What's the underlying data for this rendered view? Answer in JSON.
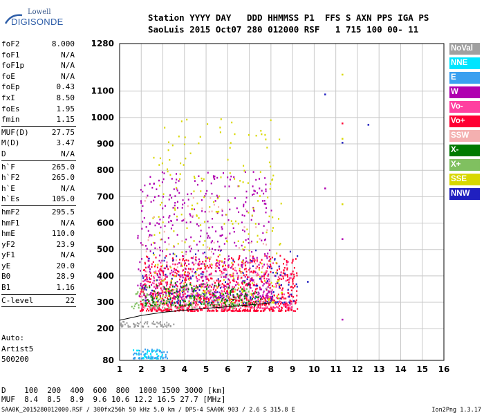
{
  "logo": {
    "line1": "Lowell",
    "line2": "DIGISONDE"
  },
  "header": {
    "line1": "Station YYYY DAY   DDD HHMMSS P1  FFS S AXN PPS IGA PS",
    "line2": "SaoLuis 2015 Oct07 280 012000 RSF   1 715 100 00- 11"
  },
  "params": {
    "group1": [
      {
        "key": "foF2",
        "value": "8.000"
      },
      {
        "key": "foF1",
        "value": "N/A"
      },
      {
        "key": "foF1p",
        "value": "N/A"
      },
      {
        "key": "foE",
        "value": "N/A"
      },
      {
        "key": "foEp",
        "value": "0.43"
      },
      {
        "key": "fxI",
        "value": "8.50"
      },
      {
        "key": "foEs",
        "value": "1.95"
      },
      {
        "key": "fmin",
        "value": "1.15"
      }
    ],
    "group2": [
      {
        "key": "MUF(D)",
        "value": "27.75"
      },
      {
        "key": "M(D)",
        "value": "3.47"
      },
      {
        "key": "D",
        "value": "N/A"
      }
    ],
    "group3": [
      {
        "key": "h`F",
        "value": "265.0"
      },
      {
        "key": "h`F2",
        "value": "265.0"
      },
      {
        "key": "h`E",
        "value": "N/A"
      },
      {
        "key": "h`Es",
        "value": "105.0"
      }
    ],
    "group4": [
      {
        "key": "hmF2",
        "value": "295.5"
      },
      {
        "key": "hmF1",
        "value": "N/A"
      },
      {
        "key": "hmE",
        "value": "110.0"
      },
      {
        "key": "yF2",
        "value": "23.9"
      },
      {
        "key": "yF1",
        "value": "N/A"
      },
      {
        "key": "yE",
        "value": "20.0"
      },
      {
        "key": "B0",
        "value": "28.9"
      },
      {
        "key": "B1",
        "value": "1.16"
      }
    ],
    "group5": [
      {
        "key": "C-level",
        "value": "22"
      }
    ]
  },
  "auto": {
    "line1": "Auto:",
    "line2": "Artist5",
    "line3": "500200"
  },
  "footer": {
    "d_row": "D    100  200  400  600  800  1000 1500 3000 [km]",
    "muf_row": "MUF  8.4  8.5  8.9  9.6 10.6 12.2 16.5 27.7 [MHz]",
    "file": "SAA0K_2015280012000.RSF / 300fx256h 50 kHz 5.0 km / DPS-4 SAA0K 903 / 2.6 S 315.8 E",
    "version": "Ion2Png 1.3.17"
  },
  "legend": [
    {
      "label": "NoVal",
      "color": "#a0a0a0"
    },
    {
      "label": "NNE",
      "color": "#00e5ff"
    },
    {
      "label": "E",
      "color": "#3aa0f0"
    },
    {
      "label": "W",
      "color": "#b000b0"
    },
    {
      "label": "Vo-",
      "color": "#ff40a0"
    },
    {
      "label": "Vo+",
      "color": "#ff0033"
    },
    {
      "label": "SSW",
      "color": "#f4b0b0"
    },
    {
      "label": "X-",
      "color": "#007a00"
    },
    {
      "label": "X+",
      "color": "#80c060"
    },
    {
      "label": "SSE",
      "color": "#d8d800"
    },
    {
      "label": "NNW",
      "color": "#2020c0"
    }
  ],
  "chart_data": {
    "type": "scatter",
    "xlabel": "",
    "ylabel": "",
    "x_ticks": [
      1,
      2,
      3,
      4,
      5,
      6,
      7,
      8,
      9,
      10,
      11,
      12,
      13,
      14,
      15,
      16
    ],
    "y_ticks": [
      80,
      200,
      300,
      400,
      500,
      600,
      700,
      800,
      900,
      1000,
      1100,
      1280
    ],
    "xlim": [
      1,
      16
    ],
    "ylim": [
      80,
      1280
    ],
    "grid": true,
    "legend_placement": "right",
    "trace": {
      "name": "",
      "x": [
        1.0,
        2.0,
        3.0,
        4.0,
        5.0,
        6.0,
        7.0,
        8.0
      ],
      "y": [
        232,
        250,
        262,
        270,
        277,
        283,
        290,
        298
      ]
    },
    "regions": [
      {
        "mode": "Vo+",
        "fmin": 1.9,
        "fmax": 9.2,
        "hmin": 270,
        "hmax": 480,
        "count": 900
      },
      {
        "mode": "Vo-",
        "fmin": 2.0,
        "fmax": 9.0,
        "hmin": 280,
        "hmax": 460,
        "count": 320
      },
      {
        "mode": "W",
        "fmin": 1.8,
        "fmax": 8.0,
        "hmin": 320,
        "hmax": 800,
        "count": 520
      },
      {
        "mode": "SSE",
        "fmin": 2.5,
        "fmax": 8.5,
        "hmin": 300,
        "hmax": 1000,
        "count": 280
      },
      {
        "mode": "NNW",
        "fmin": 2.0,
        "fmax": 9.2,
        "hmin": 300,
        "hmax": 500,
        "count": 140
      },
      {
        "mode": "X-",
        "fmin": 2.0,
        "fmax": 7.5,
        "hmin": 290,
        "hmax": 380,
        "count": 160
      },
      {
        "mode": "X+",
        "fmin": 1.5,
        "fmax": 7.0,
        "hmin": 280,
        "hmax": 360,
        "count": 90
      },
      {
        "mode": "SSW",
        "fmin": 2.0,
        "fmax": 8.0,
        "hmin": 280,
        "hmax": 700,
        "count": 110
      },
      {
        "mode": "NoVal",
        "fmin": 1.0,
        "fmax": 3.5,
        "hmin": 210,
        "hmax": 230,
        "count": 60
      },
      {
        "mode": "NNE",
        "fmin": 1.6,
        "fmax": 3.0,
        "hmin": 90,
        "hmax": 125,
        "count": 50
      },
      {
        "mode": "E",
        "fmin": 1.6,
        "fmax": 3.2,
        "hmin": 90,
        "hmax": 125,
        "count": 50
      }
    ],
    "isolated_points": [
      {
        "x": 10.5,
        "y": 1088,
        "mode": "NNW"
      },
      {
        "x": 10.5,
        "y": 732,
        "mode": "W"
      },
      {
        "x": 11.3,
        "y": 1163,
        "mode": "SSE"
      },
      {
        "x": 11.3,
        "y": 978,
        "mode": "Vo+"
      },
      {
        "x": 11.3,
        "y": 920,
        "mode": "SSE"
      },
      {
        "x": 11.3,
        "y": 905,
        "mode": "NNW"
      },
      {
        "x": 11.3,
        "y": 672,
        "mode": "SSE"
      },
      {
        "x": 11.3,
        "y": 540,
        "mode": "W"
      },
      {
        "x": 11.3,
        "y": 235,
        "mode": "W"
      },
      {
        "x": 12.5,
        "y": 973,
        "mode": "NNW"
      },
      {
        "x": 9.7,
        "y": 378,
        "mode": "NNW"
      }
    ]
  }
}
